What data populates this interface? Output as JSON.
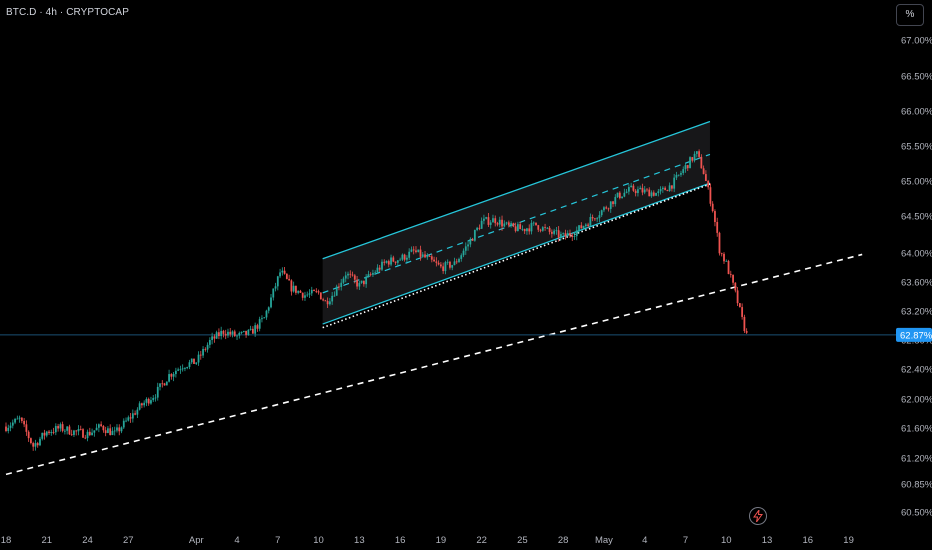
{
  "header": {
    "title": "BTC.D · 4h · CRYPTOCAP"
  },
  "scale_button": {
    "label": "%"
  },
  "chart_data": {
    "type": "candlestick",
    "symbol": "BTC.D",
    "interval": "4h",
    "source": "CRYPTOCAP",
    "y_axis": {
      "min": 60.4,
      "max": 67.2,
      "ticks": [
        67.0,
        66.5,
        66.0,
        65.5,
        65.0,
        64.5,
        64.0,
        63.6,
        63.2,
        62.8,
        62.4,
        62.0,
        61.6,
        61.2,
        60.85,
        60.5
      ],
      "tick_labels": [
        "67.00%",
        "66.50%",
        "66.00%",
        "65.50%",
        "65.00%",
        "64.50%",
        "64.00%",
        "63.60%",
        "63.20%",
        "62.80%",
        "62.40%",
        "62.00%",
        "61.60%",
        "61.20%",
        "60.85%",
        "60.50%"
      ]
    },
    "x_axis": {
      "labels": [
        "18",
        "21",
        "24",
        "27",
        "Apr",
        "4",
        "7",
        "10",
        "13",
        "16",
        "19",
        "22",
        "25",
        "28",
        "May",
        "4",
        "7",
        "10",
        "13",
        "16",
        "19"
      ],
      "label_days": [
        0,
        3,
        6,
        9,
        14,
        17,
        20,
        23,
        26,
        29,
        32,
        35,
        38,
        41,
        44,
        47,
        50,
        53,
        56,
        59,
        62
      ]
    },
    "last_value": 62.87,
    "last_value_label": "62.87%",
    "path_anchors": [
      [
        0.0,
        61.62
      ],
      [
        1.0,
        61.72
      ],
      [
        2.0,
        61.36
      ],
      [
        3.0,
        61.55
      ],
      [
        4.0,
        61.6
      ],
      [
        5.0,
        61.55
      ],
      [
        6.0,
        61.52
      ],
      [
        7.0,
        61.62
      ],
      [
        8.0,
        61.52
      ],
      [
        9.0,
        61.72
      ],
      [
        10.0,
        61.92
      ],
      [
        11.0,
        62.07
      ],
      [
        12.0,
        62.32
      ],
      [
        13.0,
        62.45
      ],
      [
        14.0,
        62.5
      ],
      [
        15.0,
        62.78
      ],
      [
        16.0,
        62.92
      ],
      [
        17.0,
        62.85
      ],
      [
        18.0,
        62.9
      ],
      [
        19.0,
        63.1
      ],
      [
        20.2,
        63.75
      ],
      [
        21.0,
        63.52
      ],
      [
        22.0,
        63.42
      ],
      [
        23.0,
        63.45
      ],
      [
        23.5,
        63.32
      ],
      [
        24.0,
        63.42
      ],
      [
        25.0,
        63.72
      ],
      [
        26.0,
        63.55
      ],
      [
        27.0,
        63.72
      ],
      [
        28.0,
        63.88
      ],
      [
        29.0,
        63.92
      ],
      [
        30.0,
        64.02
      ],
      [
        31.0,
        63.92
      ],
      [
        32.0,
        63.8
      ],
      [
        33.0,
        63.85
      ],
      [
        34.0,
        64.12
      ],
      [
        35.0,
        64.42
      ],
      [
        36.0,
        64.45
      ],
      [
        37.0,
        64.35
      ],
      [
        38.0,
        64.32
      ],
      [
        39.0,
        64.38
      ],
      [
        40.0,
        64.28
      ],
      [
        41.0,
        64.22
      ],
      [
        42.0,
        64.3
      ],
      [
        43.0,
        64.45
      ],
      [
        44.0,
        64.6
      ],
      [
        45.0,
        64.78
      ],
      [
        46.0,
        64.88
      ],
      [
        47.0,
        64.85
      ],
      [
        48.0,
        64.82
      ],
      [
        49.0,
        64.95
      ],
      [
        50.0,
        65.2
      ],
      [
        50.8,
        65.4
      ],
      [
        51.3,
        65.15
      ],
      [
        52.0,
        64.6
      ],
      [
        52.5,
        64.05
      ],
      [
        53.0,
        63.85
      ],
      [
        53.5,
        63.55
      ],
      [
        53.8,
        63.35
      ],
      [
        54.2,
        63.05
      ],
      [
        54.5,
        62.87
      ]
    ],
    "ascending_channel": {
      "upper": [
        [
          23.3,
          63.92
        ],
        [
          51.8,
          65.85
        ]
      ],
      "middle": [
        [
          23.3,
          63.45
        ],
        [
          51.8,
          65.38
        ]
      ],
      "lower": [
        [
          23.3,
          63.02
        ],
        [
          51.8,
          64.97
        ]
      ]
    },
    "channel_support_line": [
      [
        23.3,
        62.97
      ],
      [
        52.0,
        64.97
      ]
    ],
    "long_trend_line": [
      [
        0.0,
        60.98
      ],
      [
        63.0,
        63.98
      ]
    ],
    "colors": {
      "background": "#000000",
      "up": "#26a69a",
      "down": "#ef5350",
      "channel": "#26c6da",
      "channel_fill": "#1a1a1c",
      "trend": "#ffffff",
      "price_line": "#1b4f74",
      "axis_text": "#b2b5be",
      "price_badge": "#2196f3"
    }
  }
}
